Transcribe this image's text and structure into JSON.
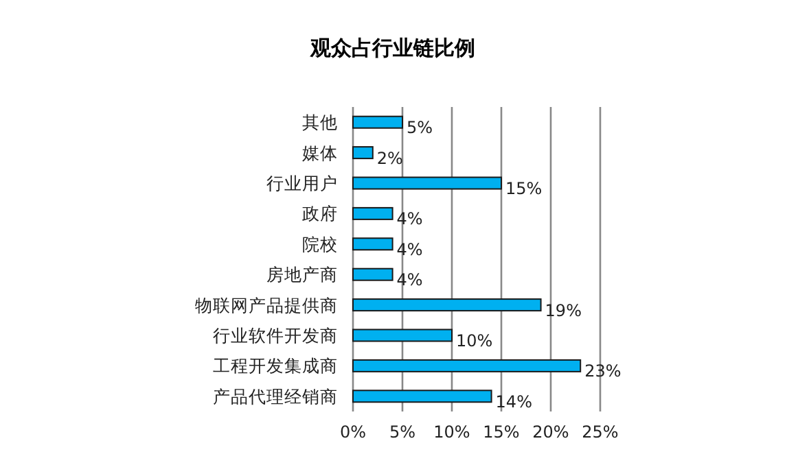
{
  "chart_data": {
    "type": "bar",
    "orientation": "horizontal",
    "title": "观众占行业链比例",
    "categories": [
      "其他",
      "媒体",
      "行业用户",
      "政府",
      "院校",
      "房地产商",
      "物联网产品提供商",
      "行业软件开发商",
      "工程开发集成商",
      "产品代理经销商"
    ],
    "values": [
      5,
      2,
      15,
      4,
      4,
      4,
      19,
      10,
      23,
      14
    ],
    "value_labels": [
      "5%",
      "2%",
      "15%",
      "4%",
      "4%",
      "4%",
      "19%",
      "10%",
      "23%",
      "14%"
    ],
    "color": "#00b0f0",
    "xlim": [
      0,
      25
    ],
    "xticks": [
      {
        "value": 0,
        "label": "0%"
      },
      {
        "value": 5,
        "label": "5%"
      },
      {
        "value": 10,
        "label": "10%"
      },
      {
        "value": 15,
        "label": "15%"
      },
      {
        "value": 20,
        "label": "20%"
      },
      {
        "value": 25,
        "label": "25%"
      }
    ],
    "grid": "x"
  }
}
